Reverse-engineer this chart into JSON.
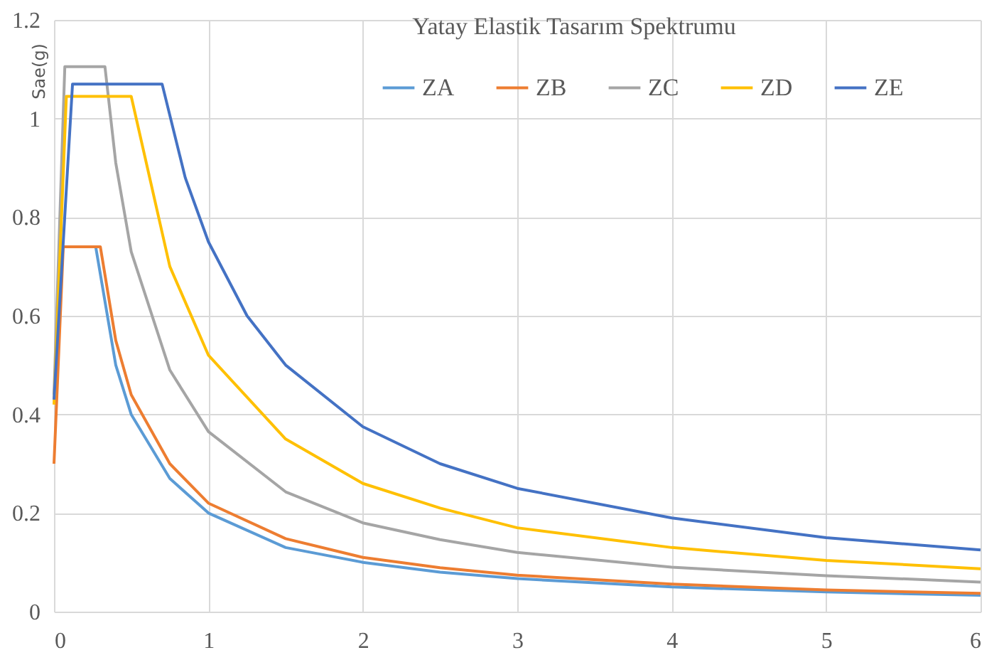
{
  "chart_data": {
    "type": "line",
    "title": "Yatay Elastik Tasarım Spektrumu",
    "ylabel": "Sae(g)",
    "xlim": [
      0,
      6
    ],
    "xticks": [
      0,
      1,
      2,
      3,
      4,
      5,
      6
    ],
    "ylim": [
      0,
      1.2
    ],
    "yticks": [
      0,
      0.2,
      0.4,
      0.6,
      0.8,
      1,
      1.2
    ],
    "grid": true,
    "legend": "top",
    "line_style": "solid",
    "marker": "none",
    "series": [
      {
        "name": "ZA",
        "color": "#5b9bd5",
        "x": [
          0.05,
          0.27,
          0.4,
          0.5,
          0.75,
          1,
          1.5,
          2,
          2.5,
          3,
          4,
          5,
          6
        ],
        "values": [
          0.74,
          0.74,
          0.5,
          0.4,
          0.27,
          0.2,
          0.13,
          0.1,
          0.08,
          0.067,
          0.05,
          0.04,
          0.033
        ]
      },
      {
        "name": "ZB",
        "color": "#ed7d31",
        "x": [
          0,
          0.06,
          0.3,
          0.4,
          0.5,
          0.75,
          1,
          1.5,
          2,
          2.5,
          3,
          4,
          5,
          6
        ],
        "values": [
          0.3,
          0.74,
          0.74,
          0.55,
          0.44,
          0.3,
          0.22,
          0.148,
          0.11,
          0.089,
          0.074,
          0.056,
          0.044,
          0.037
        ]
      },
      {
        "name": "ZC",
        "color": "#a5a5a5",
        "x": [
          0,
          0.07,
          0.33,
          0.4,
          0.5,
          0.75,
          1,
          1.5,
          2,
          2.5,
          3,
          4,
          5,
          6
        ],
        "values": [
          0.44,
          1.105,
          1.105,
          0.91,
          0.73,
          0.49,
          0.365,
          0.243,
          0.18,
          0.146,
          0.12,
          0.09,
          0.073,
          0.06
        ]
      },
      {
        "name": "ZD",
        "color": "#ffc000",
        "x": [
          0,
          0.08,
          0.5,
          0.75,
          1,
          1.5,
          2,
          2.5,
          3,
          4,
          5,
          6
        ],
        "values": [
          0.42,
          1.045,
          1.045,
          0.7,
          0.52,
          0.35,
          0.26,
          0.21,
          0.17,
          0.13,
          0.104,
          0.087
        ]
      },
      {
        "name": "ZE",
        "color": "#4472c4",
        "x": [
          0,
          0.12,
          0.7,
          0.85,
          1,
          1.25,
          1.5,
          2,
          2.5,
          3,
          4,
          5,
          6
        ],
        "values": [
          0.43,
          1.07,
          1.07,
          0.88,
          0.75,
          0.6,
          0.5,
          0.375,
          0.3,
          0.25,
          0.19,
          0.15,
          0.125
        ]
      }
    ]
  }
}
